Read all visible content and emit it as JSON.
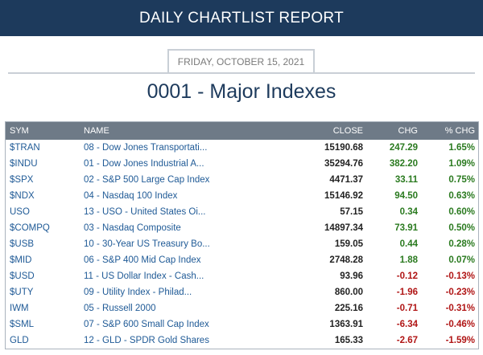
{
  "header": {
    "title": "DAILY CHARTLIST REPORT"
  },
  "report": {
    "date": "FRIDAY, OCTOBER 15, 2021",
    "list_title": "0001 - Major Indexes"
  },
  "table": {
    "columns": {
      "sym": "SYM",
      "name": "NAME",
      "close": "CLOSE",
      "chg": "CHG",
      "pct": "% CHG"
    },
    "rows": [
      {
        "sym": "$TRAN",
        "name": "08 - Dow Jones Transportati...",
        "close": "15190.68",
        "chg": "247.29",
        "pct": "1.65%",
        "dir": "pos"
      },
      {
        "sym": "$INDU",
        "name": "01 - Dow Jones Industrial A...",
        "close": "35294.76",
        "chg": "382.20",
        "pct": "1.09%",
        "dir": "pos"
      },
      {
        "sym": "$SPX",
        "name": "02 - S&P 500 Large Cap Index",
        "close": "4471.37",
        "chg": "33.11",
        "pct": "0.75%",
        "dir": "pos"
      },
      {
        "sym": "$NDX",
        "name": "04 - Nasdaq 100 Index",
        "close": "15146.92",
        "chg": "94.50",
        "pct": "0.63%",
        "dir": "pos"
      },
      {
        "sym": "USO",
        "name": "13 - USO - United States Oi...",
        "close": "57.15",
        "chg": "0.34",
        "pct": "0.60%",
        "dir": "pos"
      },
      {
        "sym": "$COMPQ",
        "name": "03 - Nasdaq Composite",
        "close": "14897.34",
        "chg": "73.91",
        "pct": "0.50%",
        "dir": "pos"
      },
      {
        "sym": "$USB",
        "name": "10 - 30-Year US Treasury Bo...",
        "close": "159.05",
        "chg": "0.44",
        "pct": "0.28%",
        "dir": "pos"
      },
      {
        "sym": "$MID",
        "name": "06 - S&P 400 Mid Cap Index",
        "close": "2748.28",
        "chg": "1.88",
        "pct": "0.07%",
        "dir": "pos"
      },
      {
        "sym": "$USD",
        "name": "11 - US Dollar Index - Cash...",
        "close": "93.96",
        "chg": "-0.12",
        "pct": "-0.13%",
        "dir": "neg"
      },
      {
        "sym": "$UTY",
        "name": "09 - Utility Index - Philad...",
        "close": "860.00",
        "chg": "-1.96",
        "pct": "-0.23%",
        "dir": "neg"
      },
      {
        "sym": "IWM",
        "name": "05 - Russell 2000",
        "close": "225.16",
        "chg": "-0.71",
        "pct": "-0.31%",
        "dir": "neg"
      },
      {
        "sym": "$SML",
        "name": "07 - S&P 600 Small Cap Index",
        "close": "1363.91",
        "chg": "-6.34",
        "pct": "-0.46%",
        "dir": "neg"
      },
      {
        "sym": "GLD",
        "name": "12 - GLD - SPDR Gold Shares",
        "close": "165.33",
        "chg": "-2.67",
        "pct": "-1.59%",
        "dir": "neg"
      }
    ]
  },
  "colors": {
    "header_bg": "#1d3a5c",
    "table_header_bg": "#6e7a87",
    "link": "#1f5a96",
    "positive": "#2a7a1f",
    "negative": "#b01515"
  }
}
